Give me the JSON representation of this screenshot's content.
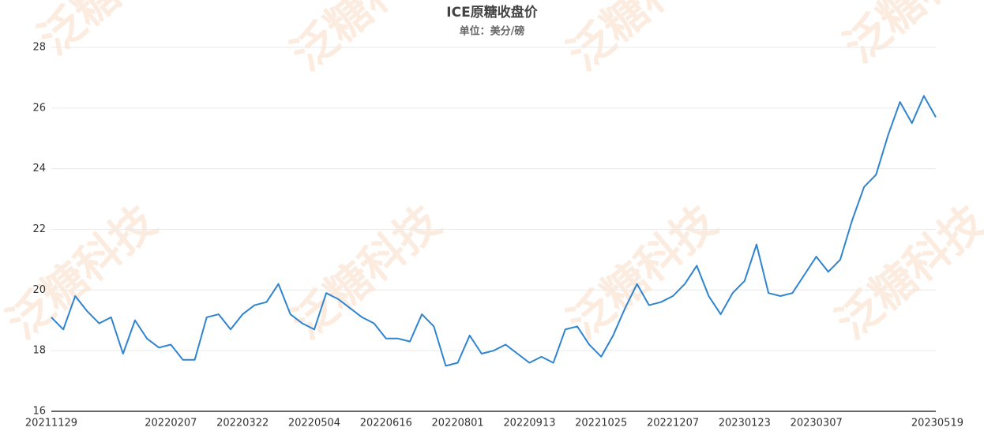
{
  "chart_data": {
    "type": "line",
    "title": "ICE原糖收盘价",
    "subtitle": "单位：美分/磅",
    "watermark": "泛糖科技",
    "categories": [
      "20211129",
      null,
      null,
      null,
      null,
      null,
      null,
      null,
      null,
      null,
      "20220207",
      null,
      null,
      null,
      null,
      null,
      "20220322",
      null,
      null,
      null,
      null,
      null,
      "20220504",
      null,
      null,
      null,
      null,
      null,
      "20220616",
      null,
      null,
      null,
      null,
      null,
      "20220801",
      null,
      null,
      null,
      null,
      null,
      "20220913",
      null,
      null,
      null,
      null,
      null,
      "20221025",
      null,
      null,
      null,
      null,
      null,
      "20221207",
      null,
      null,
      null,
      null,
      null,
      "20230123",
      null,
      null,
      null,
      null,
      null,
      "20230307",
      null,
      null,
      null,
      null,
      null,
      null,
      null,
      null,
      null,
      "20230519"
    ],
    "values": [
      19.1,
      18.7,
      19.8,
      19.3,
      18.9,
      19.1,
      17.9,
      19.0,
      18.4,
      18.1,
      18.2,
      17.7,
      17.7,
      19.1,
      19.2,
      18.7,
      19.2,
      19.5,
      19.6,
      20.2,
      19.2,
      18.9,
      18.7,
      19.9,
      19.7,
      19.4,
      19.1,
      18.9,
      18.4,
      18.4,
      18.3,
      19.2,
      18.8,
      17.5,
      17.6,
      18.5,
      17.9,
      18.0,
      18.2,
      17.9,
      17.6,
      17.8,
      17.6,
      18.7,
      18.8,
      18.2,
      17.8,
      18.5,
      19.4,
      20.2,
      19.5,
      19.6,
      19.8,
      20.2,
      20.8,
      19.8,
      19.2,
      19.9,
      20.3,
      21.5,
      19.9,
      19.8,
      19.9,
      20.5,
      21.1,
      20.6,
      21.0,
      22.3,
      23.4,
      23.8,
      25.1,
      26.2,
      25.5,
      26.4,
      25.7
    ],
    "color": "#2f84d0",
    "ylim": [
      16,
      28
    ],
    "yticks": [
      16,
      18,
      20,
      22,
      24,
      26,
      28
    ],
    "grid": true
  }
}
